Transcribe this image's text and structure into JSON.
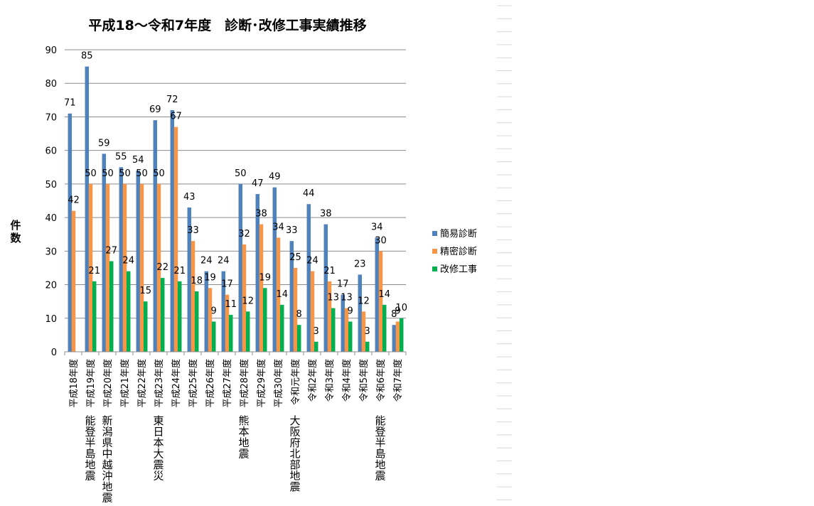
{
  "chart_data": {
    "type": "bar",
    "title": "平成18～令和7年度　診断･改修工事実績推移",
    "ylabel": "件数",
    "xlabel": "",
    "ylim": [
      0,
      90
    ],
    "yticks": [
      0,
      10,
      20,
      30,
      40,
      50,
      60,
      70,
      80,
      90
    ],
    "grid": true,
    "legend_position": "right",
    "categories": [
      "平成18年度",
      "平成19年度",
      "平成20年度",
      "平成21年度",
      "平成22年度",
      "平成23年度",
      "平成24年度",
      "平成25年度",
      "平成26年度",
      "平成27年度",
      "平成28年度",
      "平成29年度",
      "平成30年度",
      "令和元年度",
      "令和2年度",
      "令和3年度",
      "令和4年度",
      "令和5年度",
      "令和6年度",
      "令和7年度"
    ],
    "series": [
      {
        "name": "簡易診断",
        "color": "#4f81bd",
        "values": [
          71,
          85,
          59,
          55,
          54,
          69,
          72,
          43,
          24,
          24,
          50,
          47,
          49,
          33,
          44,
          38,
          17,
          23,
          34,
          8
        ]
      },
      {
        "name": "精密診断",
        "color": "#f79646",
        "values": [
          42,
          50,
          50,
          50,
          50,
          50,
          67,
          33,
          19,
          17,
          32,
          38,
          34,
          25,
          24,
          21,
          13,
          12,
          30,
          9
        ]
      },
      {
        "name": "改修工事",
        "color": "#00b050",
        "values": [
          null,
          21,
          27,
          24,
          15,
          22,
          21,
          18,
          9,
          11,
          12,
          19,
          14,
          8,
          3,
          13,
          9,
          3,
          14,
          10
        ]
      }
    ],
    "events": [
      {
        "category_index": 1,
        "label": "能登半島地震"
      },
      {
        "category_index": 2,
        "label": "新潟県中越沖地震"
      },
      {
        "category_index": 5,
        "label": "東日本大震災"
      },
      {
        "category_index": 10,
        "label": "熊本地震"
      },
      {
        "category_index": 13,
        "label": "大阪府北部地震"
      },
      {
        "category_index": 18,
        "label": "能登半島地震"
      }
    ]
  }
}
